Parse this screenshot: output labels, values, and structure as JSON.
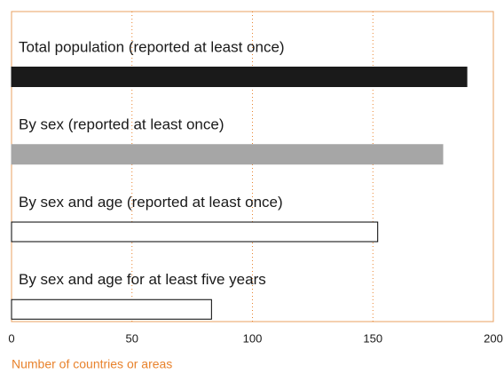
{
  "chart_data": {
    "type": "barh",
    "categories": [
      "Total population (reported at least once)",
      "By sex (reported at least once)",
      "By sex and age (reported at least once)",
      "By sex and age for at least five years"
    ],
    "values": [
      189,
      179,
      152,
      83
    ],
    "colors": [
      "#1a1a1a",
      "#a6a6a6",
      "#ffffff",
      "#ffffff"
    ],
    "edgecolors": [
      "#1a1a1a",
      "#a6a6a6",
      "#000000",
      "#000000"
    ],
    "xlabel": "Number of countries or areas",
    "xlim": [
      0,
      200
    ],
    "xticks": [
      0,
      50,
      100,
      150,
      200
    ],
    "grid": true
  }
}
